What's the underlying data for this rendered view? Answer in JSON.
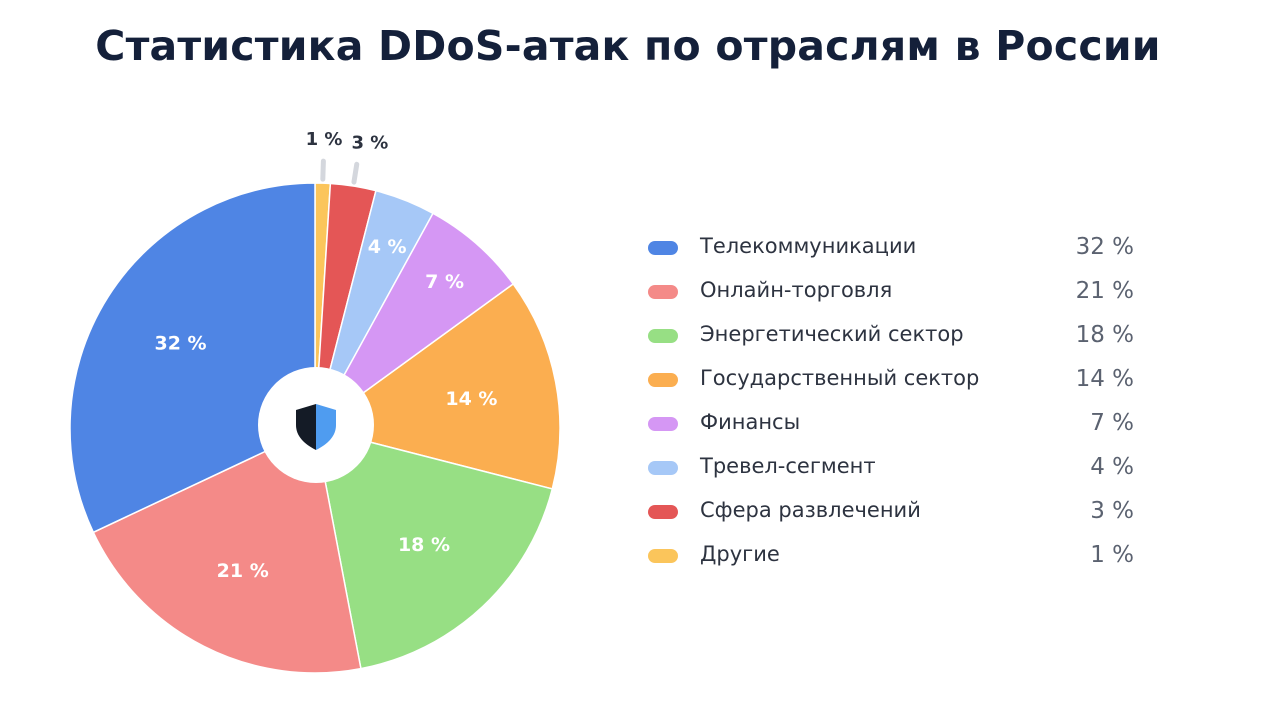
{
  "chart_data": {
    "type": "pie",
    "title": "Статистика DDoS-атак по отраслям в России",
    "center_icon": "shield-icon",
    "slices": [
      {
        "label": "Другие",
        "value": 1,
        "text": "1 %",
        "color": "#fbc55b"
      },
      {
        "label": "Сфера развлечений",
        "value": 3,
        "text": "3 %",
        "color": "#e45656"
      },
      {
        "label": "Тревел-сегмент",
        "value": 4,
        "text": "4 %",
        "color": "#a6c8f7"
      },
      {
        "label": "Финансы",
        "value": 7,
        "text": "7 %",
        "color": "#d597f4"
      },
      {
        "label": "Государственный сектор",
        "value": 14,
        "text": "14 %",
        "color": "#fbae50"
      },
      {
        "label": "Энергетический сектор",
        "value": 18,
        "text": "18 %",
        "color": "#97df84"
      },
      {
        "label": "Онлайн-торговля",
        "value": 21,
        "text": "21 %",
        "color": "#f48a88"
      },
      {
        "label": "Телекоммуникации",
        "value": 32,
        "text": "32 %",
        "color": "#4f85e4"
      }
    ],
    "legend_order": [
      7,
      6,
      5,
      4,
      3,
      2,
      1,
      0
    ],
    "legend_placement": "right"
  }
}
